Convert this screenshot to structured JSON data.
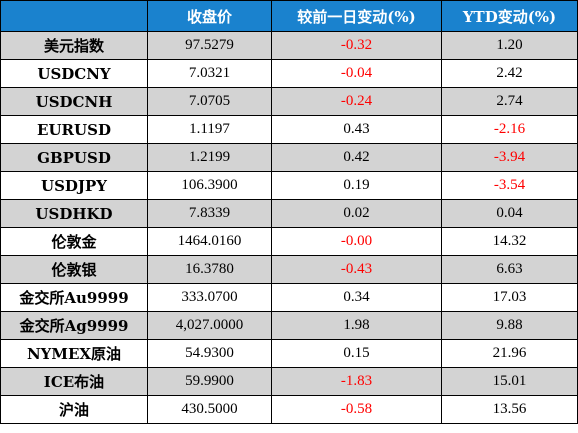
{
  "table": {
    "headers": [
      "",
      "收盘价",
      "较前一日变动(%)",
      "YTD变动(%)"
    ],
    "rows": [
      {
        "name": "美元指数",
        "close": "97.5279",
        "day_change": "-0.32",
        "ytd_change": "1.20"
      },
      {
        "name": "USDCNY",
        "close": "7.0321",
        "day_change": "-0.04",
        "ytd_change": "2.42"
      },
      {
        "name": "USDCNH",
        "close": "7.0705",
        "day_change": "-0.24",
        "ytd_change": "2.74"
      },
      {
        "name": "EURUSD",
        "close": "1.1197",
        "day_change": "0.43",
        "ytd_change": "-2.16"
      },
      {
        "name": "GBPUSD",
        "close": "1.2199",
        "day_change": "0.42",
        "ytd_change": "-3.94"
      },
      {
        "name": "USDJPY",
        "close": "106.3900",
        "day_change": "0.19",
        "ytd_change": "-3.54"
      },
      {
        "name": "USDHKD",
        "close": "7.8339",
        "day_change": "0.02",
        "ytd_change": "0.04"
      },
      {
        "name": "伦敦金",
        "close": "1464.0160",
        "day_change": "-0.00",
        "ytd_change": "14.32"
      },
      {
        "name": "伦敦银",
        "close": "16.3780",
        "day_change": "-0.43",
        "ytd_change": "6.63"
      },
      {
        "name": "金交所Au9999",
        "close": "333.0700",
        "day_change": "0.34",
        "ytd_change": "17.03"
      },
      {
        "name": "金交所Ag9999",
        "close": "4,027.0000",
        "day_change": "1.98",
        "ytd_change": "9.88"
      },
      {
        "name": "NYMEX原油",
        "close": "54.9300",
        "day_change": "0.15",
        "ytd_change": "21.96"
      },
      {
        "name": "ICE布油",
        "close": "59.9900",
        "day_change": "-1.83",
        "ytd_change": "15.01"
      },
      {
        "name": "沪油",
        "close": "430.5000",
        "day_change": "-0.58",
        "ytd_change": "13.56"
      }
    ]
  },
  "colors": {
    "header_background": "#1a82ce",
    "header_text": "#ffffff",
    "shaded_row": "#d3d3d3",
    "negative_value": "#ff0000",
    "positive_value": "#000000",
    "border": "#000000"
  }
}
